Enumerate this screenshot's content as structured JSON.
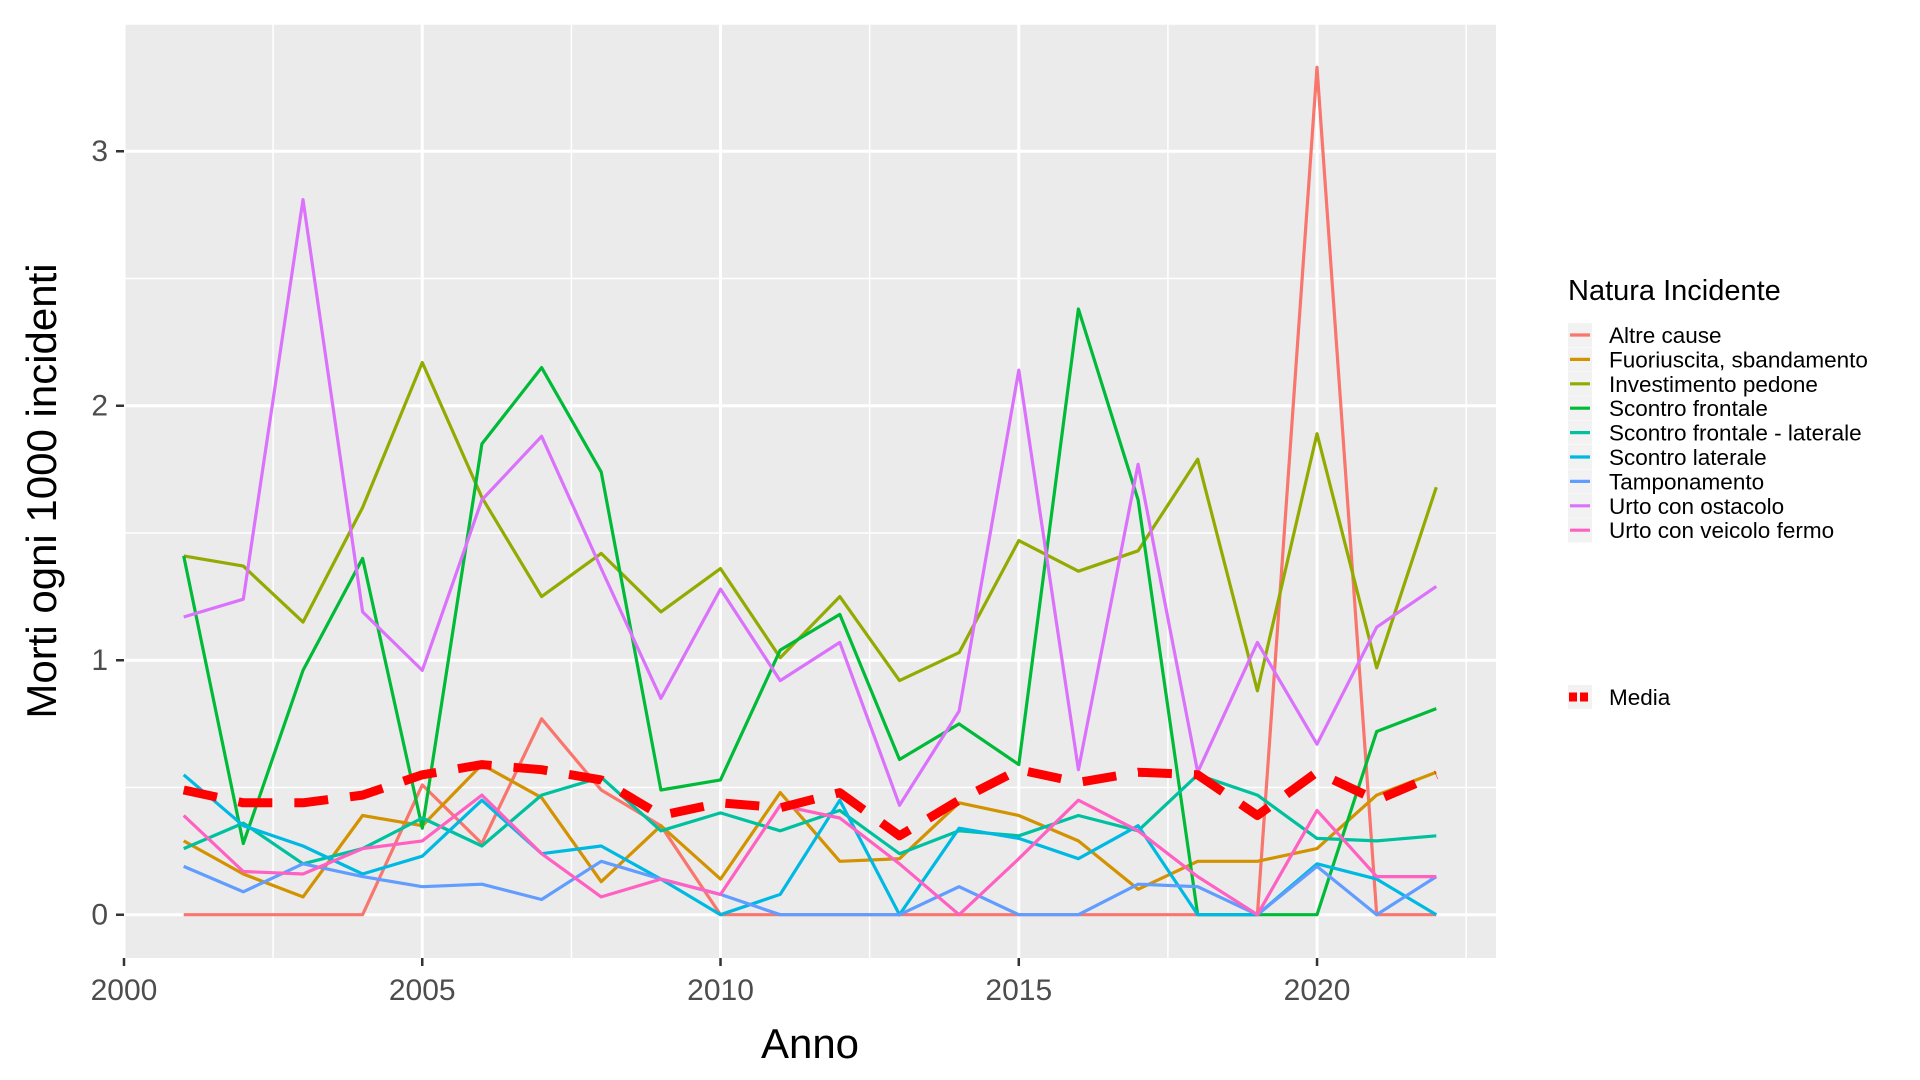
{
  "chart_data": {
    "type": "line",
    "xlabel": "Anno",
    "ylabel": "Morti ogni 1000 incidenti",
    "xlim": [
      2000,
      2023
    ],
    "ylim": [
      -0.17,
      3.5
    ],
    "x_ticks": [
      "2000",
      "2005",
      "2010",
      "2015",
      "2020"
    ],
    "y_ticks": [
      "0",
      "1",
      "2",
      "3"
    ],
    "legend_title": "Natura Incidente",
    "legend_position": "right",
    "grid": true,
    "x": [
      2001,
      2002,
      2003,
      2004,
      2005,
      2006,
      2007,
      2008,
      2009,
      2010,
      2011,
      2012,
      2013,
      2014,
      2015,
      2016,
      2017,
      2018,
      2019,
      2020,
      2021,
      2022
    ],
    "series": [
      {
        "name": "Altre cause",
        "color": "#F8766D",
        "values": [
          0,
          0,
          0,
          0,
          0.51,
          0.28,
          0.77,
          0.49,
          0.35,
          0,
          0,
          0,
          0,
          0,
          0,
          0,
          0,
          0,
          0,
          3.33,
          0,
          0
        ]
      },
      {
        "name": "Fuoriuscita, sbandamento",
        "color": "#D39200",
        "values": [
          0.29,
          0.16,
          0.07,
          0.39,
          0.35,
          0.59,
          0.46,
          0.13,
          0.35,
          0.14,
          0.48,
          0.21,
          0.22,
          0.44,
          0.39,
          0.29,
          0.1,
          0.21,
          0.21,
          0.26,
          0.47,
          0.56
        ]
      },
      {
        "name": "Investimento pedone",
        "color": "#93AA00",
        "values": [
          1.41,
          1.37,
          1.15,
          1.6,
          2.17,
          1.64,
          1.25,
          1.42,
          1.19,
          1.36,
          1.01,
          1.25,
          0.92,
          1.03,
          1.47,
          1.35,
          1.43,
          1.79,
          0.88,
          1.89,
          0.97,
          1.68
        ]
      },
      {
        "name": "Scontro frontale",
        "color": "#00BA38",
        "values": [
          1.41,
          0.28,
          0.96,
          1.4,
          0.34,
          1.85,
          2.15,
          1.74,
          0.49,
          0.53,
          1.04,
          1.18,
          0.61,
          0.75,
          0.59,
          2.38,
          1.63,
          0,
          0,
          0,
          0.72,
          0.81
        ]
      },
      {
        "name": "Scontro frontale - laterale",
        "color": "#00C19F",
        "values": [
          0.26,
          0.36,
          0.2,
          0.26,
          0.38,
          0.27,
          0.47,
          0.54,
          0.33,
          0.4,
          0.33,
          0.41,
          0.24,
          0.33,
          0.31,
          0.39,
          0.33,
          0.55,
          0.47,
          0.3,
          0.29,
          0.31
        ]
      },
      {
        "name": "Scontro laterale",
        "color": "#00B9E3",
        "values": [
          0.55,
          0.35,
          0.27,
          0.16,
          0.23,
          0.45,
          0.24,
          0.27,
          0.14,
          0,
          0.08,
          0.45,
          0,
          0.34,
          0.3,
          0.22,
          0.35,
          0,
          0,
          0.2,
          0.14,
          0
        ]
      },
      {
        "name": "Tamponamento",
        "color": "#619CFF",
        "values": [
          0.19,
          0.09,
          0.2,
          0.15,
          0.11,
          0.12,
          0.06,
          0.21,
          0.14,
          0.08,
          0,
          0,
          0,
          0.11,
          0,
          0,
          0.12,
          0.11,
          0,
          0.19,
          0,
          0.15
        ]
      },
      {
        "name": "Urto con ostacolo",
        "color": "#DB72FB",
        "values": [
          1.17,
          1.24,
          2.81,
          1.19,
          0.96,
          1.63,
          1.88,
          1.36,
          0.85,
          1.28,
          0.92,
          1.07,
          0.43,
          0.8,
          2.14,
          0.57,
          1.77,
          0.56,
          1.07,
          0.67,
          1.13,
          1.29
        ]
      },
      {
        "name": "Urto con veicolo fermo",
        "color": "#FF61C3",
        "values": [
          0.39,
          0.17,
          0.16,
          0.26,
          0.29,
          0.47,
          0.24,
          0.07,
          0.14,
          0.08,
          0.43,
          0.38,
          0.2,
          0,
          0.22,
          0.45,
          0.33,
          0.15,
          0,
          0.41,
          0.15,
          0.15
        ]
      }
    ],
    "mean": {
      "name": "Media",
      "color": "#FF0000",
      "style": "dashed",
      "values": [
        0.49,
        0.44,
        0.44,
        0.47,
        0.55,
        0.59,
        0.57,
        0.53,
        0.39,
        0.44,
        0.42,
        0.48,
        0.31,
        0.45,
        0.57,
        0.52,
        0.56,
        0.55,
        0.39,
        0.56,
        0.45,
        0.55
      ]
    }
  }
}
